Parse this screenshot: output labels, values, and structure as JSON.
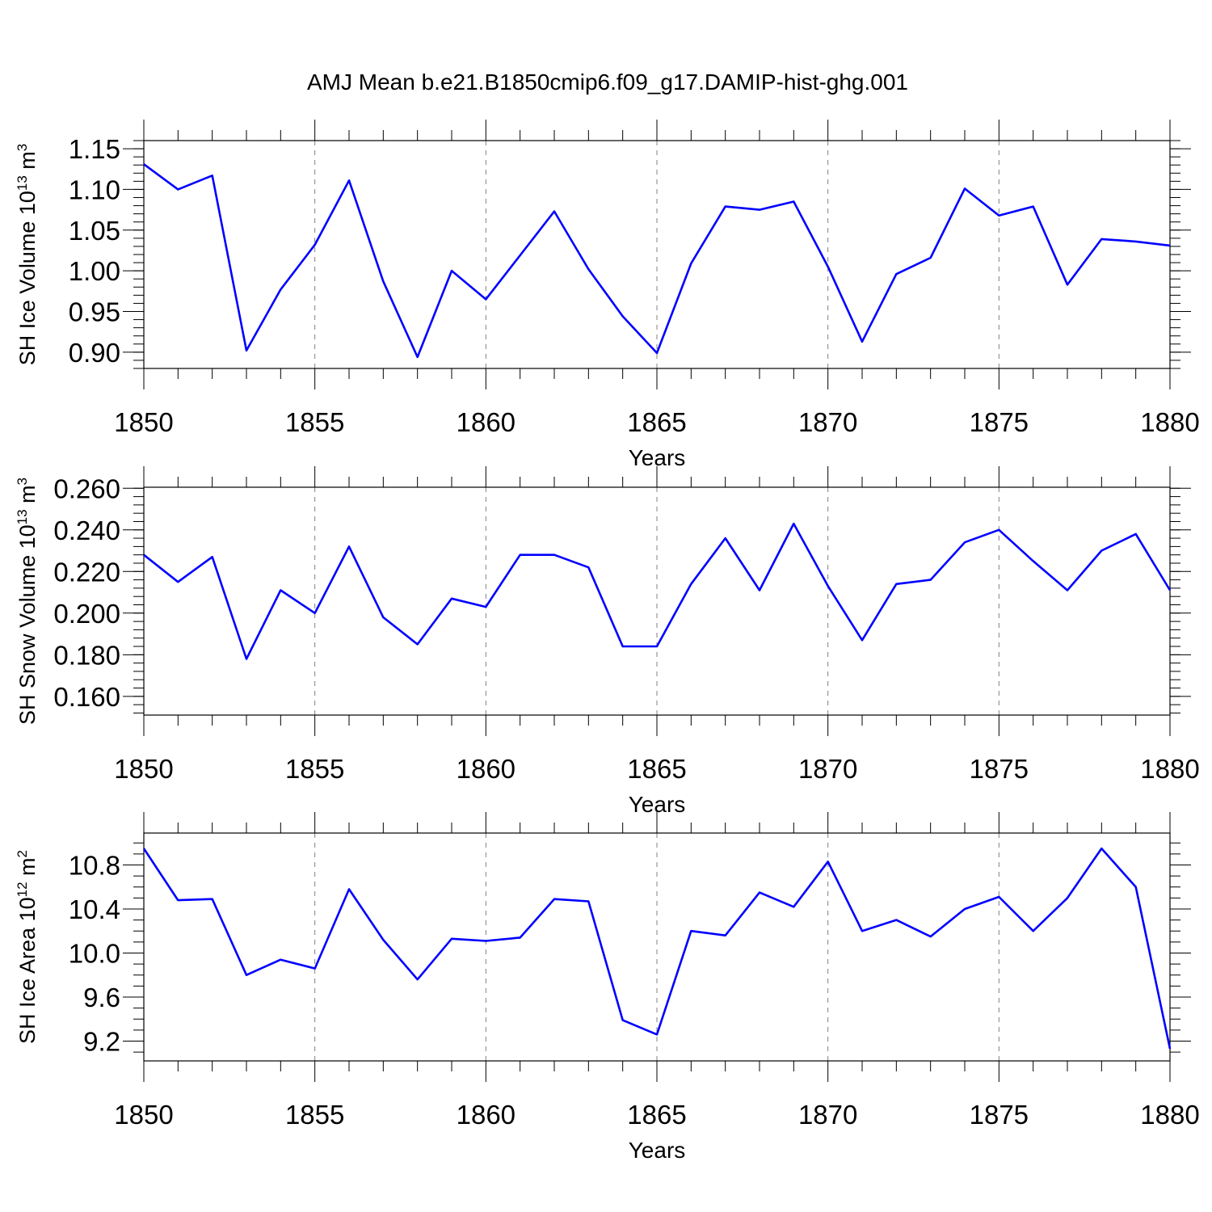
{
  "title": "AMJ Mean b.e21.B1850cmip6.f09_g17.DAMIP-hist-ghg.001",
  "colors": {
    "line": "#0000ff",
    "axis": "#000000",
    "grid": "#808080"
  },
  "chart_data": [
    {
      "type": "line",
      "ylabel_main": "SH Ice Volume 10",
      "ylabel_exp": "13",
      "ylabel_unit": " m",
      "ylabel_unit_exp": "3",
      "xlabel": "Years",
      "xlim": [
        1850,
        1880
      ],
      "ylim": [
        0.88,
        1.16
      ],
      "y_ticks": [
        0.9,
        0.95,
        1.0,
        1.05,
        1.1,
        1.15
      ],
      "y_tick_labels": [
        "0.90",
        "0.95",
        "1.00",
        "1.05",
        "1.10",
        "1.15"
      ],
      "y_minor_step": 0.01,
      "x_ticks": [
        1850,
        1855,
        1860,
        1865,
        1870,
        1875,
        1880
      ],
      "x_tick_labels": [
        "1850",
        "1855",
        "1860",
        "1865",
        "1870",
        "1875",
        "1880"
      ],
      "x": [
        1850,
        1851,
        1852,
        1853,
        1854,
        1855,
        1856,
        1857,
        1858,
        1859,
        1860,
        1861,
        1862,
        1863,
        1864,
        1865,
        1866,
        1867,
        1868,
        1869,
        1870,
        1871,
        1872,
        1873,
        1874,
        1875,
        1876,
        1877,
        1878,
        1879,
        1880
      ],
      "values": [
        1.131,
        1.1,
        1.117,
        0.902,
        0.977,
        1.032,
        1.111,
        0.987,
        0.894,
        1.0,
        0.965,
        1.019,
        1.073,
        1.002,
        0.944,
        0.899,
        1.009,
        1.079,
        1.075,
        1.085,
        1.005,
        0.913,
        0.996,
        1.016,
        1.101,
        1.068,
        1.079,
        0.983,
        1.039,
        1.036,
        1.031
      ]
    },
    {
      "type": "line",
      "ylabel_main": "SH Snow Volume 10",
      "ylabel_exp": "13",
      "ylabel_unit": " m",
      "ylabel_unit_exp": "3",
      "xlabel": "Years",
      "xlim": [
        1850,
        1880
      ],
      "ylim": [
        0.151,
        0.2605
      ],
      "y_ticks": [
        0.16,
        0.18,
        0.2,
        0.22,
        0.24,
        0.26
      ],
      "y_tick_labels": [
        "0.160",
        "0.180",
        "0.200",
        "0.220",
        "0.240",
        "0.260"
      ],
      "y_minor_step": 0.004,
      "x_ticks": [
        1850,
        1855,
        1860,
        1865,
        1870,
        1875,
        1880
      ],
      "x_tick_labels": [
        "1850",
        "1855",
        "1860",
        "1865",
        "1870",
        "1875",
        "1880"
      ],
      "x": [
        1850,
        1851,
        1852,
        1853,
        1854,
        1855,
        1856,
        1857,
        1858,
        1859,
        1860,
        1861,
        1862,
        1863,
        1864,
        1865,
        1866,
        1867,
        1868,
        1869,
        1870,
        1871,
        1872,
        1873,
        1874,
        1875,
        1876,
        1877,
        1878,
        1879,
        1880
      ],
      "values": [
        0.228,
        0.215,
        0.227,
        0.178,
        0.211,
        0.2,
        0.232,
        0.198,
        0.185,
        0.207,
        0.203,
        0.228,
        0.228,
        0.222,
        0.184,
        0.184,
        0.214,
        0.236,
        0.211,
        0.243,
        0.213,
        0.187,
        0.214,
        0.216,
        0.234,
        0.24,
        0.225,
        0.211,
        0.23,
        0.238,
        0.211
      ]
    },
    {
      "type": "line",
      "ylabel_main": "SH Ice Area 10",
      "ylabel_exp": "12",
      "ylabel_unit": " m",
      "ylabel_unit_exp": "2",
      "xlabel": "Years",
      "xlim": [
        1850,
        1880
      ],
      "ylim": [
        9.02,
        11.09
      ],
      "y_ticks": [
        9.2,
        9.6,
        10.0,
        10.4,
        10.8
      ],
      "y_tick_labels": [
        "9.2",
        "9.6",
        "10.0",
        "10.4",
        "10.8"
      ],
      "y_minor_step": 0.1,
      "x_ticks": [
        1850,
        1855,
        1860,
        1865,
        1870,
        1875,
        1880
      ],
      "x_tick_labels": [
        "1850",
        "1855",
        "1860",
        "1865",
        "1870",
        "1875",
        "1880"
      ],
      "x": [
        1850,
        1851,
        1852,
        1853,
        1854,
        1855,
        1856,
        1857,
        1858,
        1859,
        1860,
        1861,
        1862,
        1863,
        1864,
        1865,
        1866,
        1867,
        1868,
        1869,
        1870,
        1871,
        1872,
        1873,
        1874,
        1875,
        1876,
        1877,
        1878,
        1879,
        1880
      ],
      "values": [
        10.95,
        10.48,
        10.49,
        9.8,
        9.94,
        9.86,
        10.58,
        10.12,
        9.76,
        10.13,
        10.11,
        10.14,
        10.49,
        10.47,
        9.39,
        9.26,
        10.2,
        10.16,
        10.55,
        10.42,
        10.83,
        10.2,
        10.3,
        10.15,
        10.4,
        10.51,
        10.2,
        10.5,
        10.95,
        10.6,
        9.13
      ]
    }
  ]
}
